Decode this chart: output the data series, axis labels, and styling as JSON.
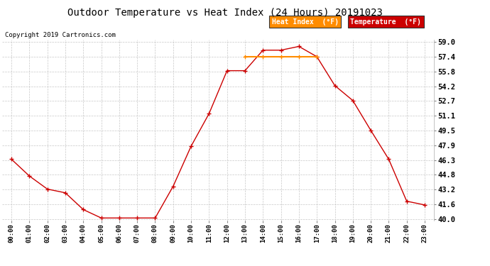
{
  "title": "Outdoor Temperature vs Heat Index (24 Hours) 20191023",
  "copyright": "Copyright 2019 Cartronics.com",
  "hours": [
    "00:00",
    "01:00",
    "02:00",
    "03:00",
    "04:00",
    "05:00",
    "06:00",
    "07:00",
    "08:00",
    "09:00",
    "10:00",
    "11:00",
    "12:00",
    "13:00",
    "14:00",
    "15:00",
    "16:00",
    "17:00",
    "18:00",
    "19:00",
    "20:00",
    "21:00",
    "22:00",
    "23:00"
  ],
  "temperature": [
    46.4,
    44.6,
    43.2,
    42.8,
    41.0,
    40.1,
    40.1,
    40.1,
    40.1,
    43.5,
    47.8,
    51.3,
    55.9,
    55.9,
    58.1,
    58.1,
    58.5,
    57.4,
    54.3,
    52.7,
    49.5,
    46.4,
    41.9,
    41.5
  ],
  "heat_index": [
    null,
    null,
    null,
    null,
    null,
    null,
    null,
    null,
    null,
    null,
    null,
    null,
    null,
    57.4,
    57.4,
    57.4,
    57.4,
    57.4,
    null,
    null,
    null,
    null,
    null,
    null
  ],
  "temp_color": "#cc0000",
  "heat_color": "#ff8c00",
  "ylim_min": 40.0,
  "ylim_max": 59.0,
  "yticks": [
    40.0,
    41.6,
    43.2,
    44.8,
    46.3,
    47.9,
    49.5,
    51.1,
    52.7,
    54.2,
    55.8,
    57.4,
    59.0
  ],
  "background_color": "#ffffff",
  "grid_color": "#c8c8c8",
  "legend_heat_bg": "#ff8c00",
  "legend_temp_bg": "#cc0000",
  "legend_text_color": "#ffffff"
}
